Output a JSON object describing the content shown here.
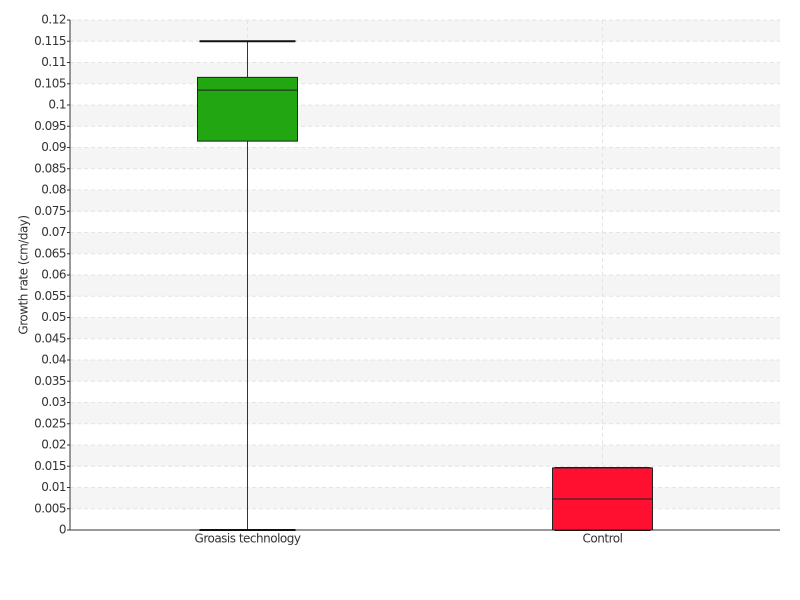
{
  "chart_data": {
    "type": "box",
    "y_label": "Growth rate (cm/day)",
    "categories": [
      "Groasis technology",
      "Control"
    ],
    "boxes": [
      {
        "min": 0,
        "q1": 0.0915,
        "median": 0.1035,
        "q3": 0.1065,
        "max": 0.115,
        "color": "#22a611"
      },
      {
        "min": 0,
        "q1": 0,
        "median": 0.0073,
        "q3": 0.0146,
        "max": 0.0146,
        "color": "#ff1030"
      }
    ],
    "ylim": [
      0,
      0.12
    ],
    "yticks": [
      0,
      0.005,
      0.01,
      0.015,
      0.02,
      0.025,
      0.03,
      0.035,
      0.04,
      0.045,
      0.05,
      0.055,
      0.06,
      0.065,
      0.07,
      0.075,
      0.08,
      0.085,
      0.09,
      0.095,
      0.1,
      0.105,
      0.11,
      0.115,
      0.12
    ],
    "grid": true
  }
}
